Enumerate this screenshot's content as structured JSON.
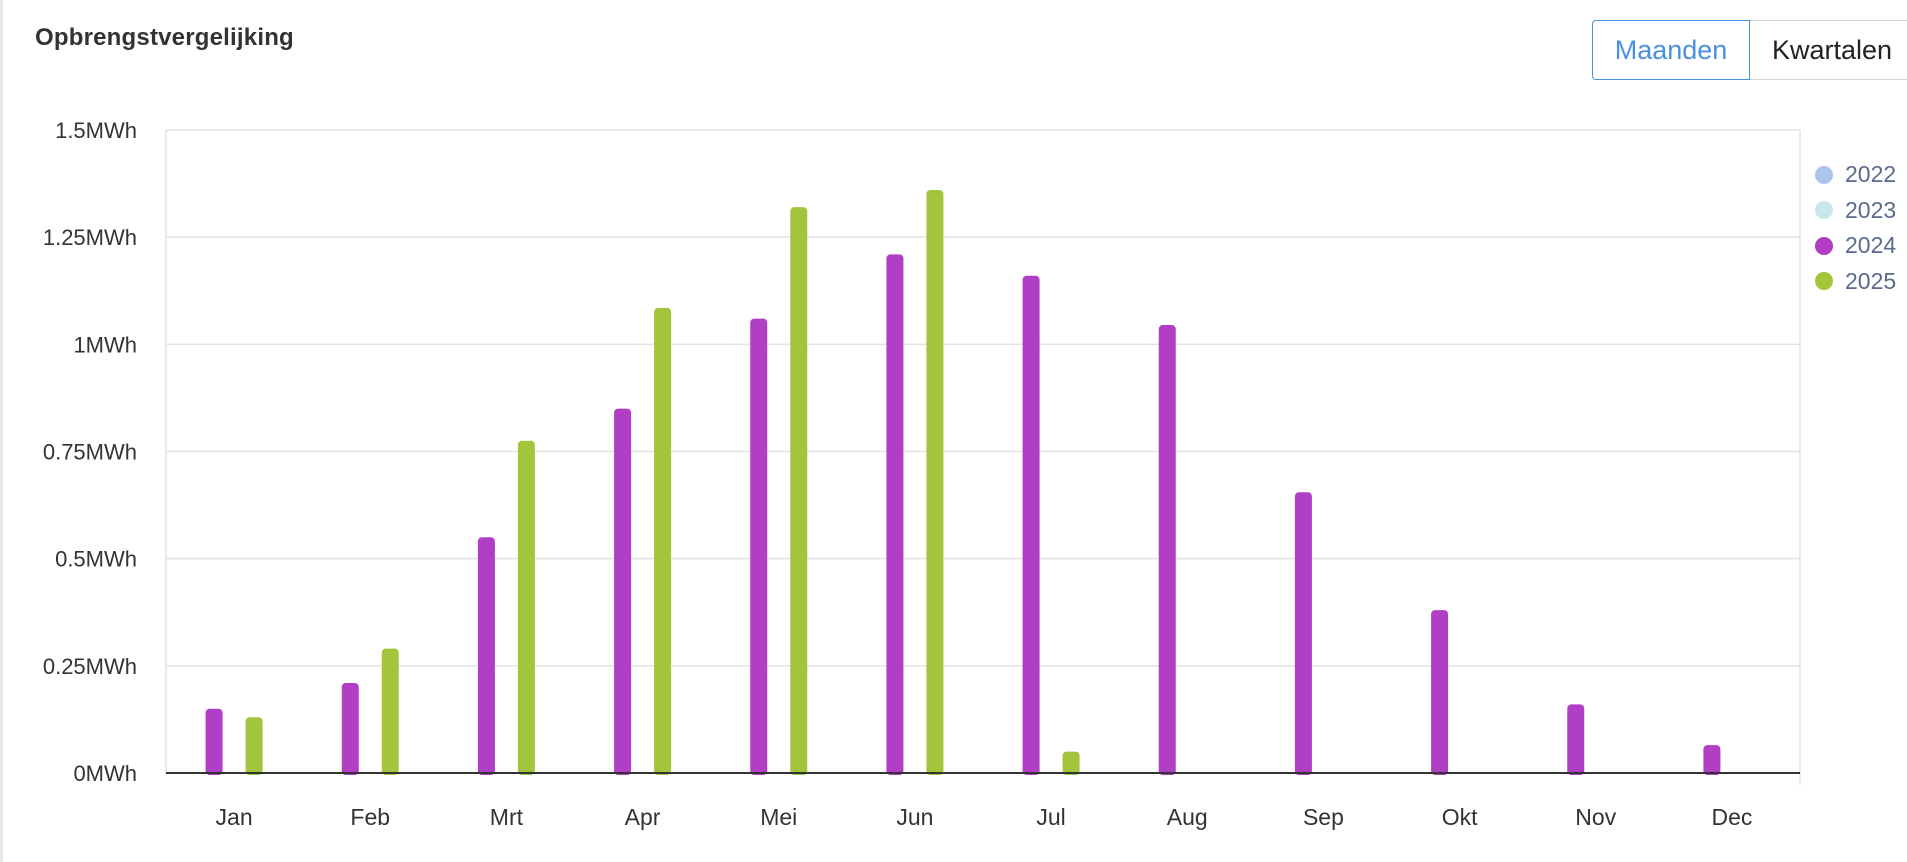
{
  "title": "Opbrengstvergelijking",
  "toggle": {
    "months_label": "Maanden",
    "quarters_label": "Kwartalen",
    "active": "Maanden"
  },
  "colors": {
    "2022": "#aac4ea",
    "2023": "#c9e6ec",
    "2024": "#b03fc6",
    "2025": "#a3c53c",
    "grid": "#e3e3e3",
    "axis": "#333333",
    "tick_text": "#333333"
  },
  "legend": [
    {
      "name": "2022",
      "color": "#aac4ea"
    },
    {
      "name": "2023",
      "color": "#c9e6ec"
    },
    {
      "name": "2024",
      "color": "#b03fc6"
    },
    {
      "name": "2025",
      "color": "#a3c53c"
    }
  ],
  "chart_data": {
    "type": "bar",
    "title": "Opbrengstvergelijking",
    "xlabel": "",
    "ylabel": "",
    "unit": "MWh",
    "ylim": [
      0,
      1.5
    ],
    "yticks": [
      0,
      0.25,
      0.5,
      0.75,
      1,
      1.25,
      1.5
    ],
    "ytick_labels": [
      "0MWh",
      "0.25MWh",
      "0.5MWh",
      "0.75MWh",
      "1MWh",
      "1.25MWh",
      "1.5MWh"
    ],
    "categories": [
      "Jan",
      "Feb",
      "Mrt",
      "Apr",
      "Mei",
      "Jun",
      "Jul",
      "Aug",
      "Sep",
      "Okt",
      "Nov",
      "Dec"
    ],
    "grid": true,
    "legend_position": "right",
    "series": [
      {
        "name": "2022",
        "values": [
          null,
          null,
          null,
          null,
          null,
          null,
          null,
          null,
          null,
          null,
          null,
          null
        ]
      },
      {
        "name": "2023",
        "values": [
          null,
          null,
          null,
          null,
          null,
          null,
          null,
          null,
          null,
          null,
          null,
          null
        ]
      },
      {
        "name": "2024",
        "values": [
          0.15,
          0.21,
          0.55,
          0.85,
          1.06,
          1.21,
          1.16,
          1.045,
          0.655,
          0.38,
          0.16,
          0.065
        ]
      },
      {
        "name": "2025",
        "values": [
          0.13,
          0.29,
          0.775,
          1.085,
          1.32,
          1.36,
          0.05,
          null,
          null,
          null,
          null,
          null
        ]
      }
    ]
  }
}
